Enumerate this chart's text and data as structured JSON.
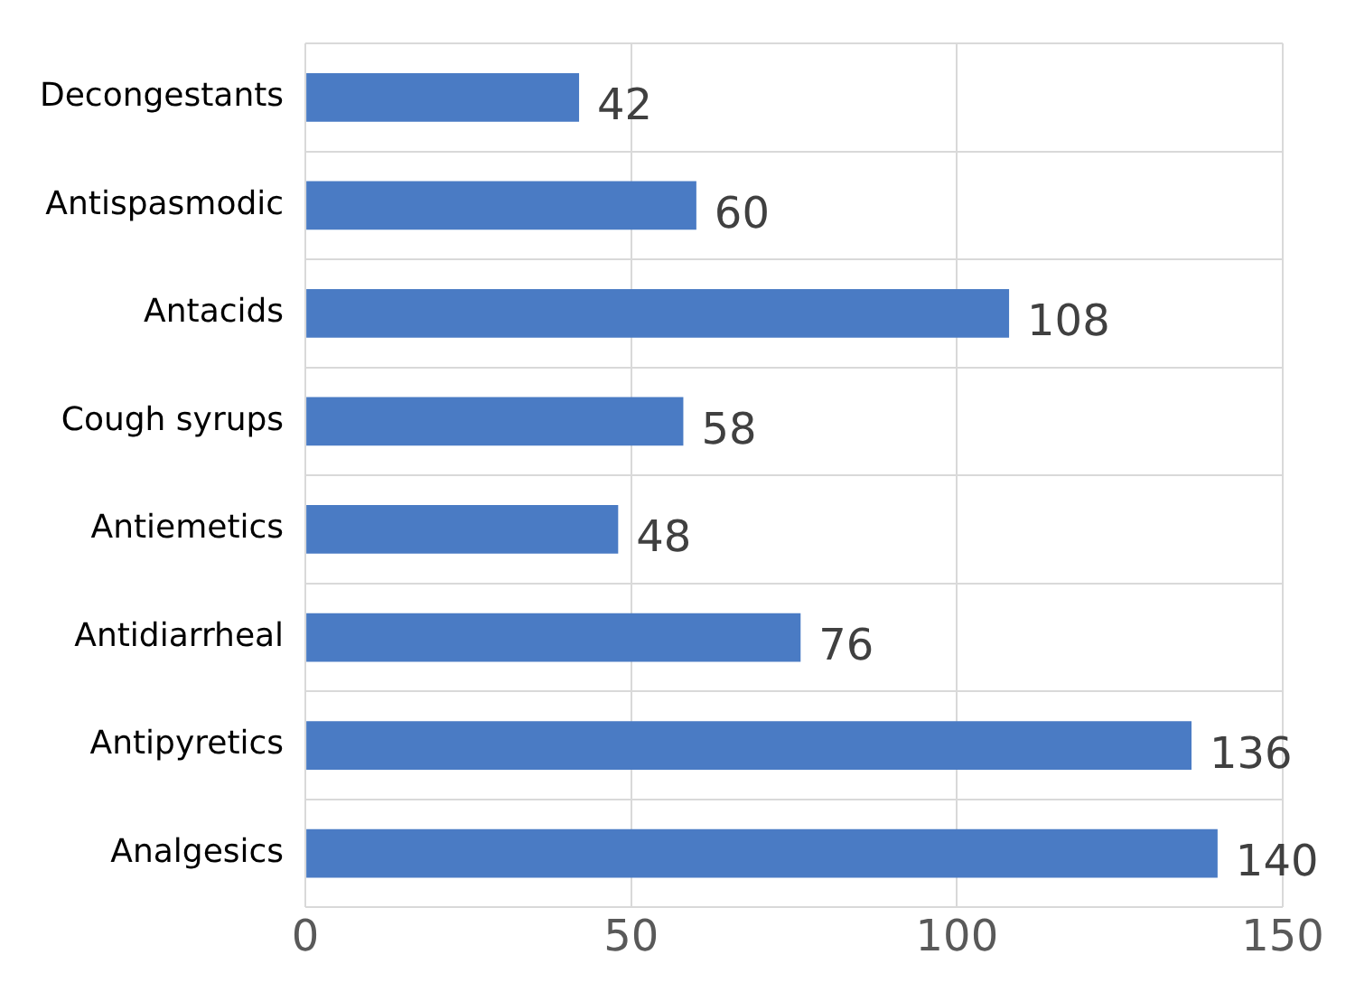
{
  "chart_data": {
    "type": "bar",
    "orientation": "horizontal",
    "categories": [
      "Decongestants",
      "Antispasmodic",
      "Antacids",
      "Cough syrups",
      "Antiemetics",
      "Antidiarrheal",
      "Antipyretics",
      "Analgesics"
    ],
    "values": [
      42,
      60,
      108,
      58,
      48,
      76,
      136,
      140
    ],
    "color": "#4a7bc4",
    "xlim": [
      0,
      150
    ],
    "xticks": [
      0,
      50,
      100,
      150
    ],
    "grid": true,
    "data_labels": true,
    "legend": false
  }
}
